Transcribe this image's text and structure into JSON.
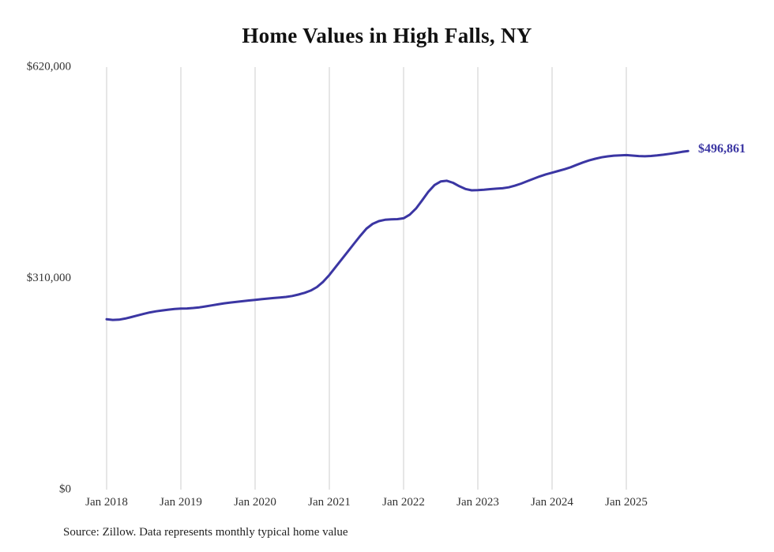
{
  "chart": {
    "title": "Home Values in High Falls, NY",
    "end_label": "$496,861",
    "source_note": "Source: Zillow. Data represents monthly typical home value",
    "line_color": "#3b36a3",
    "grid_color": "#cccccc",
    "text_color": "#333333"
  },
  "chart_data": {
    "type": "line",
    "title": "Home Values in High Falls, NY",
    "xlabel": "",
    "ylabel": "",
    "ylim": [
      0,
      620000
    ],
    "grid": "vertical-only",
    "legend": "none",
    "frequency": "monthly",
    "final_value": 496861,
    "y_ticks": [
      {
        "value": 0,
        "label": "$0"
      },
      {
        "value": 310000,
        "label": "$310,000"
      },
      {
        "value": 620000,
        "label": "$620,000"
      }
    ],
    "x_ticks": [
      {
        "month_index": 0,
        "label": "Jan 2018"
      },
      {
        "month_index": 12,
        "label": "Jan 2019"
      },
      {
        "month_index": 24,
        "label": "Jan 2020"
      },
      {
        "month_index": 36,
        "label": "Jan 2021"
      },
      {
        "month_index": 48,
        "label": "Jan 2022"
      },
      {
        "month_index": 60,
        "label": "Jan 2023"
      },
      {
        "month_index": 72,
        "label": "Jan 2024"
      },
      {
        "month_index": 84,
        "label": "Jan 2025"
      }
    ],
    "x": [
      "2018-01",
      "2018-02",
      "2018-03",
      "2018-04",
      "2018-05",
      "2018-06",
      "2018-07",
      "2018-08",
      "2018-09",
      "2018-10",
      "2018-11",
      "2018-12",
      "2019-01",
      "2019-02",
      "2019-03",
      "2019-04",
      "2019-05",
      "2019-06",
      "2019-07",
      "2019-08",
      "2019-09",
      "2019-10",
      "2019-11",
      "2019-12",
      "2020-01",
      "2020-02",
      "2020-03",
      "2020-04",
      "2020-05",
      "2020-06",
      "2020-07",
      "2020-08",
      "2020-09",
      "2020-10",
      "2020-11",
      "2020-12",
      "2021-01",
      "2021-02",
      "2021-03",
      "2021-04",
      "2021-05",
      "2021-06",
      "2021-07",
      "2021-08",
      "2021-09",
      "2021-10",
      "2021-11",
      "2021-12",
      "2022-01",
      "2022-02",
      "2022-03",
      "2022-04",
      "2022-05",
      "2022-06",
      "2022-07",
      "2022-08",
      "2022-09",
      "2022-10",
      "2022-11",
      "2022-12",
      "2023-01",
      "2023-02",
      "2023-03",
      "2023-04",
      "2023-05",
      "2023-06",
      "2023-07",
      "2023-08",
      "2023-09",
      "2023-10",
      "2023-11",
      "2023-12",
      "2024-01",
      "2024-02",
      "2024-03",
      "2024-04",
      "2024-05",
      "2024-06",
      "2024-07",
      "2024-08",
      "2024-09",
      "2024-10",
      "2024-11",
      "2024-12",
      "2025-01",
      "2025-02",
      "2025-03",
      "2025-04",
      "2025-05",
      "2025-06",
      "2025-07",
      "2025-08",
      "2025-09",
      "2025-10",
      "2025-11"
    ],
    "values": [
      250000,
      249000,
      249400,
      251000,
      253200,
      255600,
      258000,
      260100,
      261700,
      263000,
      264100,
      265000,
      265600,
      265900,
      266500,
      267500,
      268900,
      270400,
      271900,
      273400,
      274500,
      275500,
      276500,
      277500,
      278500,
      279400,
      280300,
      281200,
      281900,
      282800,
      284200,
      286200,
      288800,
      292200,
      297200,
      305000,
      315000,
      326500,
      338000,
      349500,
      361000,
      372500,
      383000,
      390000,
      394000,
      396000,
      396600,
      396900,
      398200,
      403500,
      412500,
      424500,
      437000,
      447000,
      452200,
      453200,
      450200,
      445200,
      441200,
      439200,
      439600,
      440100,
      441000,
      441600,
      442200,
      443600,
      446100,
      449100,
      452600,
      456100,
      459600,
      462600,
      465100,
      467600,
      470100,
      473100,
      476600,
      480100,
      483100,
      485600,
      487600,
      489100,
      490100,
      490600,
      490900,
      490200,
      489500,
      489200,
      489600,
      490400,
      491500,
      492800,
      494200,
      495600,
      496861
    ]
  }
}
